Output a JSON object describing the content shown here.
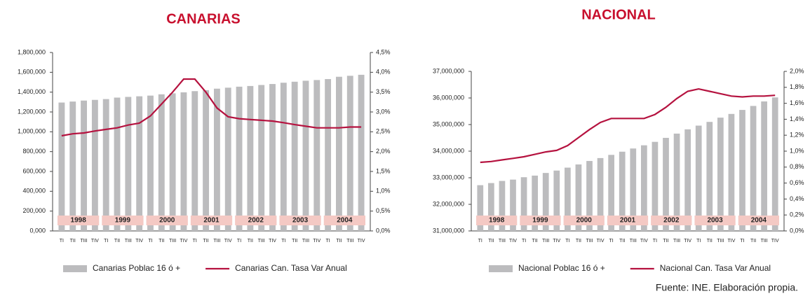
{
  "chart_data": [
    {
      "type": "combo",
      "title": "CANARIAS",
      "categories": [
        "TI",
        "TII",
        "TIII",
        "TIV",
        "TI",
        "TII",
        "TIII",
        "TIV",
        "TI",
        "TII",
        "TIII",
        "TIV",
        "TI",
        "TII",
        "TIII",
        "TIV",
        "TI",
        "TII",
        "TIII",
        "TIV",
        "TI",
        "TII",
        "TIII",
        "TIV",
        "TI",
        "TII",
        "TIII",
        "TIV"
      ],
      "years": [
        "1998",
        "1999",
        "2000",
        "2001",
        "2002",
        "2003",
        "2004"
      ],
      "series": [
        {
          "name": "Canarias Poblac 16 ó +",
          "color": "#bcbcbe",
          "kind": "bar",
          "values": [
            1295000,
            1305000,
            1315000,
            1322000,
            1330000,
            1345000,
            1352000,
            1358000,
            1365000,
            1378000,
            1388000,
            1398000,
            1410000,
            1420000,
            1435000,
            1445000,
            1455000,
            1462000,
            1472000,
            1482000,
            1495000,
            1505000,
            1515000,
            1522000,
            1532000,
            1555000,
            1565000,
            1575000
          ]
        },
        {
          "name": "Canarias Can. Tasa Var Anual",
          "color": "#b5123f",
          "kind": "line",
          "axis": "y2",
          "values": [
            2.4,
            2.45,
            2.47,
            2.52,
            2.56,
            2.6,
            2.67,
            2.72,
            2.9,
            3.2,
            3.5,
            3.83,
            3.83,
            3.5,
            3.1,
            2.88,
            2.83,
            2.81,
            2.79,
            2.77,
            2.73,
            2.68,
            2.64,
            2.6,
            2.6,
            2.6,
            2.62,
            2.62
          ]
        }
      ],
      "ylim": [
        0,
        1800000
      ],
      "yticks": [
        {
          "value": 0,
          "label": "0,000"
        },
        {
          "value": 200000,
          "label": "200,000"
        },
        {
          "value": 400000,
          "label": "400,000"
        },
        {
          "value": 600000,
          "label": "600,000"
        },
        {
          "value": 800000,
          "label": "800,000"
        },
        {
          "value": 1000000,
          "label": "1,000,000"
        },
        {
          "value": 1200000,
          "label": "1,200,000"
        },
        {
          "value": 1400000,
          "label": "1,400,000"
        },
        {
          "value": 1600000,
          "label": "1,600,000"
        },
        {
          "value": 1800000,
          "label": "1,800,000"
        }
      ],
      "y2lim": [
        0,
        4.5
      ],
      "y2ticks": [
        {
          "value": 0,
          "label": "0,0%"
        },
        {
          "value": 0.5,
          "label": "0,5%"
        },
        {
          "value": 1,
          "label": "1,0%"
        },
        {
          "value": 1.5,
          "label": "1,5%"
        },
        {
          "value": 2,
          "label": "2,0%"
        },
        {
          "value": 2.5,
          "label": "2,5%"
        },
        {
          "value": 3,
          "label": "3,0%"
        },
        {
          "value": 3.5,
          "label": "3,5%"
        },
        {
          "value": 4,
          "label": "4,0%"
        },
        {
          "value": 4.5,
          "label": "4,5%"
        }
      ]
    },
    {
      "type": "combo",
      "title": "NACIONAL",
      "categories": [
        "TI",
        "TII",
        "TIII",
        "TIV",
        "TI",
        "TII",
        "TIII",
        "TIV",
        "TI",
        "TII",
        "TIII",
        "TIV",
        "TI",
        "TII",
        "TIII",
        "TIV",
        "TI",
        "TII",
        "TIII",
        "TIV",
        "TI",
        "TII",
        "TIII",
        "TIV",
        "TI",
        "TII",
        "TIII",
        "TIV"
      ],
      "years": [
        "1998",
        "1999",
        "2000",
        "2001",
        "2002",
        "2003",
        "2004"
      ],
      "series": [
        {
          "name": "Nacional Poblac 16 ó +",
          "color": "#bcbcbe",
          "kind": "bar",
          "values": [
            32720000,
            32800000,
            32880000,
            32930000,
            33020000,
            33080000,
            33180000,
            33270000,
            33380000,
            33500000,
            33630000,
            33740000,
            33860000,
            33980000,
            34100000,
            34220000,
            34350000,
            34500000,
            34660000,
            34820000,
            34960000,
            35100000,
            35260000,
            35400000,
            35550000,
            35700000,
            35870000,
            36020000
          ]
        },
        {
          "name": "Nacional Can. Tasa Var Anual",
          "color": "#b5123f",
          "kind": "line",
          "axis": "y2",
          "values": [
            0.86,
            0.87,
            0.89,
            0.91,
            0.93,
            0.96,
            0.99,
            1.01,
            1.07,
            1.17,
            1.27,
            1.36,
            1.41,
            1.41,
            1.41,
            1.41,
            1.46,
            1.55,
            1.66,
            1.75,
            1.78,
            1.75,
            1.72,
            1.69,
            1.68,
            1.69,
            1.69,
            1.7
          ]
        }
      ],
      "ylim": [
        31000000,
        37000000
      ],
      "yticks": [
        {
          "value": 31000000,
          "label": "31,000,000"
        },
        {
          "value": 32000000,
          "label": "32,000,000"
        },
        {
          "value": 33000000,
          "label": "33,000,000"
        },
        {
          "value": 34000000,
          "label": "34,000,000"
        },
        {
          "value": 35000000,
          "label": "35,000,000"
        },
        {
          "value": 36000000,
          "label": "36,000,000"
        },
        {
          "value": 37000000,
          "label": "37,000,000"
        }
      ],
      "y2lim": [
        0,
        2
      ],
      "y2ticks": [
        {
          "value": 0,
          "label": "0,0%"
        },
        {
          "value": 0.2,
          "label": "0,2%"
        },
        {
          "value": 0.4,
          "label": "0,4%"
        },
        {
          "value": 0.6,
          "label": "0,6%"
        },
        {
          "value": 0.8,
          "label": "0,8%"
        },
        {
          "value": 1,
          "label": "1,0%"
        },
        {
          "value": 1.2,
          "label": "1,2%"
        },
        {
          "value": 1.4,
          "label": "1,4%"
        },
        {
          "value": 1.6,
          "label": "1,6%"
        },
        {
          "value": 1.8,
          "label": "1,8%"
        },
        {
          "value": 2,
          "label": "2,0%"
        }
      ]
    }
  ],
  "source": "Fuente: INE. Elaboración propia."
}
